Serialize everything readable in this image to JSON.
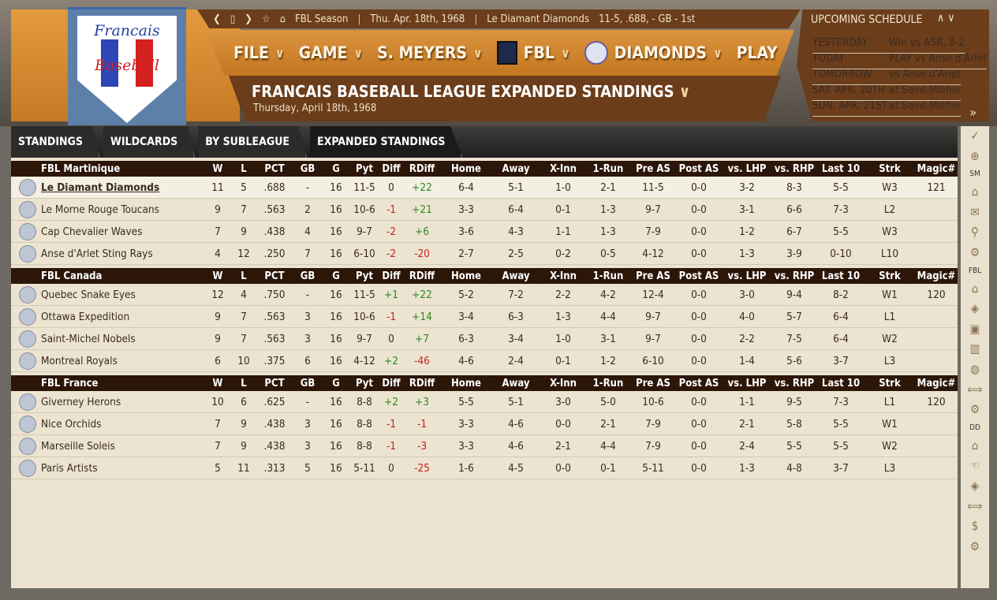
{
  "topbar": {
    "nav_icons": [
      "chevron-left-icon",
      "window-icon",
      "chevron-right-icon",
      "star-icon",
      "home-icon"
    ],
    "season": "FBL Season",
    "date": "Thu. Apr. 18th, 1968",
    "team": "Le Diamant Diamonds",
    "record": "11-5, .688, - GB - 1st"
  },
  "logo": {
    "text1": "Francais",
    "text2": "Baseball"
  },
  "menu": [
    "FILE",
    "GAME",
    "S. MEYERS",
    "FBL",
    "DIAMONDS",
    "PLAY"
  ],
  "title": {
    "main": "FRANCAIS BASEBALL LEAGUE EXPANDED STANDINGS",
    "sub": "Thursday, April 18th, 1968"
  },
  "schedule": {
    "header": "UPCOMING SCHEDULE",
    "items": [
      {
        "day": "YESTERDAY",
        "info": "Win vs ASR, 8-2"
      },
      {
        "day": "TODAY",
        "info": "PLAY vs Anse d'Arlet"
      },
      {
        "day": "TOMORROW",
        "info": "vs Anse d'Arlet"
      },
      {
        "day": "SAT. APR. 20TH",
        "info": "at Saint-Michel"
      },
      {
        "day": "SUN. APR. 21ST",
        "info": "at Saint-Michel"
      }
    ]
  },
  "tabs": [
    "STANDINGS",
    "WILDCARDS",
    "BY SUBLEAGUE",
    "EXPANDED STANDINGS"
  ],
  "active_tab": 3,
  "columns": [
    "W",
    "L",
    "PCT",
    "GB",
    "G",
    "Pyt",
    "Diff",
    "RDiff",
    "Home",
    "Away",
    "X-Inn",
    "1-Run",
    "Pre AS",
    "Post AS",
    "vs. LHP",
    "vs. RHP",
    "Last 10",
    "Strk",
    "Magic#"
  ],
  "colors": {
    "positive": "#2c8a24",
    "negative": "#c8221c",
    "header_bg": "#2b1608",
    "accent": "#c57a25"
  },
  "divisions": [
    {
      "name": "FBL Martinique",
      "teams": [
        [
          "Le Diamant Diamonds",
          "11",
          "5",
          ".688",
          "-",
          "16",
          "11-5",
          "0",
          "+22",
          "6-4",
          "5-1",
          "1-0",
          "2-1",
          "11-5",
          "0-0",
          "3-2",
          "8-3",
          "5-5",
          "W3",
          "121"
        ],
        [
          "Le Morne Rouge Toucans",
          "9",
          "7",
          ".563",
          "2",
          "16",
          "10-6",
          "-1",
          "+21",
          "3-3",
          "6-4",
          "0-1",
          "1-3",
          "9-7",
          "0-0",
          "3-1",
          "6-6",
          "7-3",
          "L2",
          ""
        ],
        [
          "Cap Chevalier Waves",
          "7",
          "9",
          ".438",
          "4",
          "16",
          "9-7",
          "-2",
          "+6",
          "3-6",
          "4-3",
          "1-1",
          "1-3",
          "7-9",
          "0-0",
          "1-2",
          "6-7",
          "5-5",
          "W3",
          ""
        ],
        [
          "Anse d'Arlet Sting Rays",
          "4",
          "12",
          ".250",
          "7",
          "16",
          "6-10",
          "-2",
          "-20",
          "2-7",
          "2-5",
          "0-2",
          "0-5",
          "4-12",
          "0-0",
          "1-3",
          "3-9",
          "0-10",
          "L10",
          ""
        ]
      ]
    },
    {
      "name": "FBL Canada",
      "teams": [
        [
          "Quebec Snake Eyes",
          "12",
          "4",
          ".750",
          "-",
          "16",
          "11-5",
          "+1",
          "+22",
          "5-2",
          "7-2",
          "2-2",
          "4-2",
          "12-4",
          "0-0",
          "3-0",
          "9-4",
          "8-2",
          "W1",
          "120"
        ],
        [
          "Ottawa Expedition",
          "9",
          "7",
          ".563",
          "3",
          "16",
          "10-6",
          "-1",
          "+14",
          "3-4",
          "6-3",
          "1-3",
          "4-4",
          "9-7",
          "0-0",
          "4-0",
          "5-7",
          "6-4",
          "L1",
          ""
        ],
        [
          "Saint-Michel Nobels",
          "9",
          "7",
          ".563",
          "3",
          "16",
          "9-7",
          "0",
          "+7",
          "6-3",
          "3-4",
          "1-0",
          "3-1",
          "9-7",
          "0-0",
          "2-2",
          "7-5",
          "6-4",
          "W2",
          ""
        ],
        [
          "Montreal Royals",
          "6",
          "10",
          ".375",
          "6",
          "16",
          "4-12",
          "+2",
          "-46",
          "4-6",
          "2-4",
          "0-1",
          "1-2",
          "6-10",
          "0-0",
          "1-4",
          "5-6",
          "3-7",
          "L3",
          ""
        ]
      ]
    },
    {
      "name": "FBL France",
      "teams": [
        [
          "Giverney Herons",
          "10",
          "6",
          ".625",
          "-",
          "16",
          "8-8",
          "+2",
          "+3",
          "5-5",
          "5-1",
          "3-0",
          "5-0",
          "10-6",
          "0-0",
          "1-1",
          "9-5",
          "7-3",
          "L1",
          "120"
        ],
        [
          "Nice Orchids",
          "7",
          "9",
          ".438",
          "3",
          "16",
          "8-8",
          "-1",
          "-1",
          "3-3",
          "4-6",
          "0-0",
          "2-1",
          "7-9",
          "0-0",
          "2-1",
          "5-8",
          "5-5",
          "W1",
          ""
        ],
        [
          "Marseille Soleis",
          "7",
          "9",
          ".438",
          "3",
          "16",
          "8-8",
          "-1",
          "-3",
          "3-3",
          "4-6",
          "2-1",
          "4-4",
          "7-9",
          "0-0",
          "2-4",
          "5-5",
          "5-5",
          "W2",
          ""
        ],
        [
          "Paris Artists",
          "5",
          "11",
          ".313",
          "5",
          "16",
          "5-11",
          "0",
          "-25",
          "1-6",
          "4-5",
          "0-0",
          "0-1",
          "5-11",
          "0-0",
          "1-3",
          "4-8",
          "3-7",
          "L3",
          ""
        ]
      ]
    }
  ],
  "sidebar": [
    {
      "icon": "check-icon",
      "g": "✓"
    },
    {
      "icon": "globe-icon",
      "g": "⊕"
    },
    {
      "label": "SM"
    },
    {
      "icon": "home-icon",
      "g": "⌂"
    },
    {
      "icon": "mail-icon",
      "g": "✉"
    },
    {
      "icon": "search-icon",
      "g": "⚲"
    },
    {
      "icon": "gear-icon",
      "g": "⚙"
    },
    {
      "label": "FBL"
    },
    {
      "icon": "home-icon",
      "g": "⌂"
    },
    {
      "icon": "diamond-icon",
      "g": "◈"
    },
    {
      "icon": "id-card-icon",
      "g": "▣"
    },
    {
      "icon": "bar-chart-icon",
      "g": "▥"
    },
    {
      "icon": "baseball-icon",
      "g": "◍"
    },
    {
      "icon": "transactions-icon",
      "g": "⟺"
    },
    {
      "icon": "gear-icon",
      "g": "⚙"
    },
    {
      "label": "DD"
    },
    {
      "icon": "home-icon",
      "g": "⌂"
    },
    {
      "icon": "hand-icon",
      "g": "☜"
    },
    {
      "icon": "diamond-icon",
      "g": "◈"
    },
    {
      "icon": "transactions-icon",
      "g": "⟺"
    },
    {
      "icon": "dollar-icon",
      "g": "$"
    },
    {
      "icon": "gear-icon",
      "g": "⚙"
    }
  ]
}
